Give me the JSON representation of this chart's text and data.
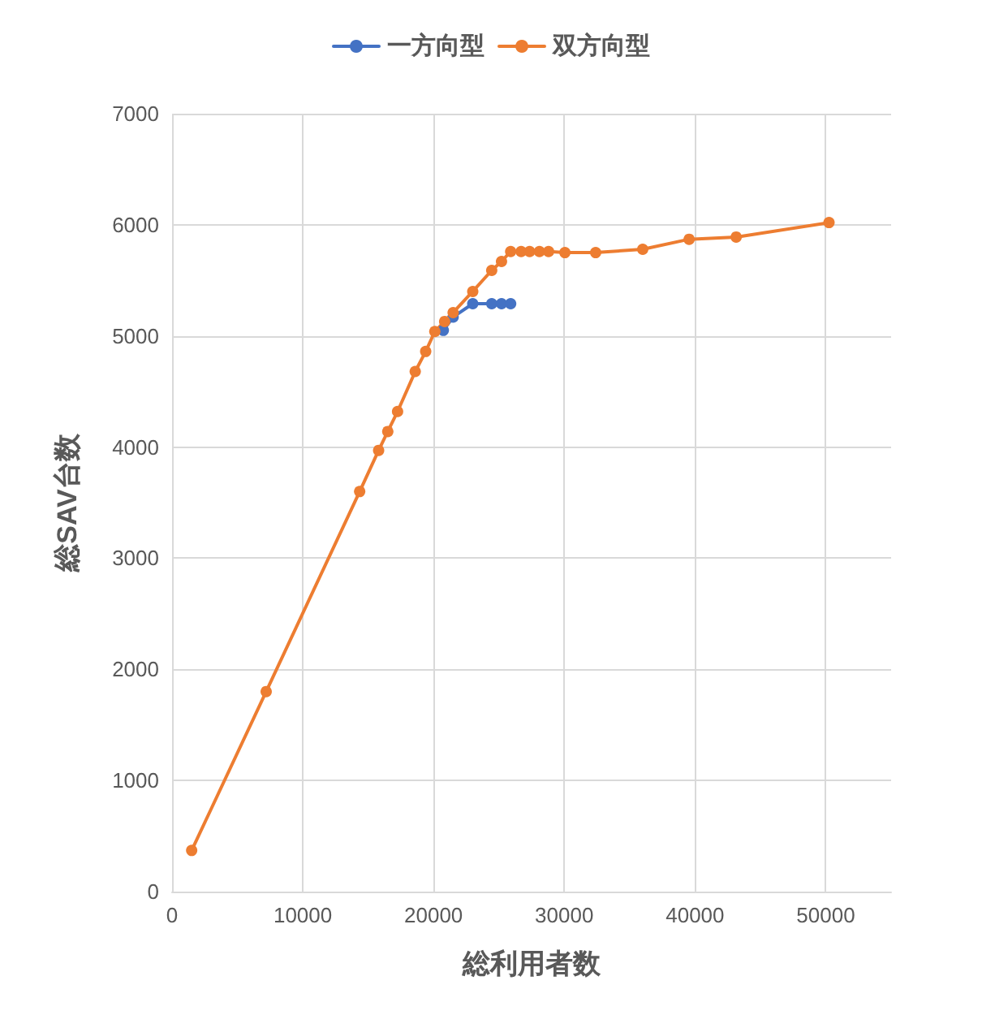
{
  "chart_data": {
    "type": "line",
    "xlabel": "総利用者数",
    "ylabel": "総SAV台数",
    "legend": "top",
    "grid": true,
    "marker": "circle",
    "line_style": "solid",
    "xlim": [
      0,
      55000
    ],
    "xticks": [
      0,
      10000,
      20000,
      30000,
      40000,
      50000
    ],
    "ylim": [
      0,
      7000
    ],
    "yticks": [
      0,
      1000,
      2000,
      3000,
      4000,
      5000,
      6000,
      7000
    ],
    "series": [
      {
        "name": "一方向型",
        "color": "#4472c4",
        "x": [
          20750,
          21500,
          23000,
          24450,
          25200,
          25900
        ],
        "values": [
          5050,
          5170,
          5290,
          5290,
          5290,
          5290
        ]
      },
      {
        "name": "双方向型",
        "color": "#ed7d31",
        "x": [
          1500,
          7200,
          14350,
          15800,
          16500,
          17250,
          18600,
          19400,
          20100,
          20850,
          21500,
          23000,
          24450,
          25200,
          25900,
          26700,
          27350,
          28100,
          28800,
          30050,
          32400,
          36000,
          39550,
          43150,
          50250
        ],
        "values": [
          370,
          1800,
          3600,
          3970,
          4140,
          4320,
          4680,
          4860,
          5040,
          5130,
          5210,
          5400,
          5590,
          5670,
          5760,
          5760,
          5760,
          5760,
          5760,
          5750,
          5750,
          5780,
          5870,
          5890,
          6020
        ]
      }
    ]
  }
}
